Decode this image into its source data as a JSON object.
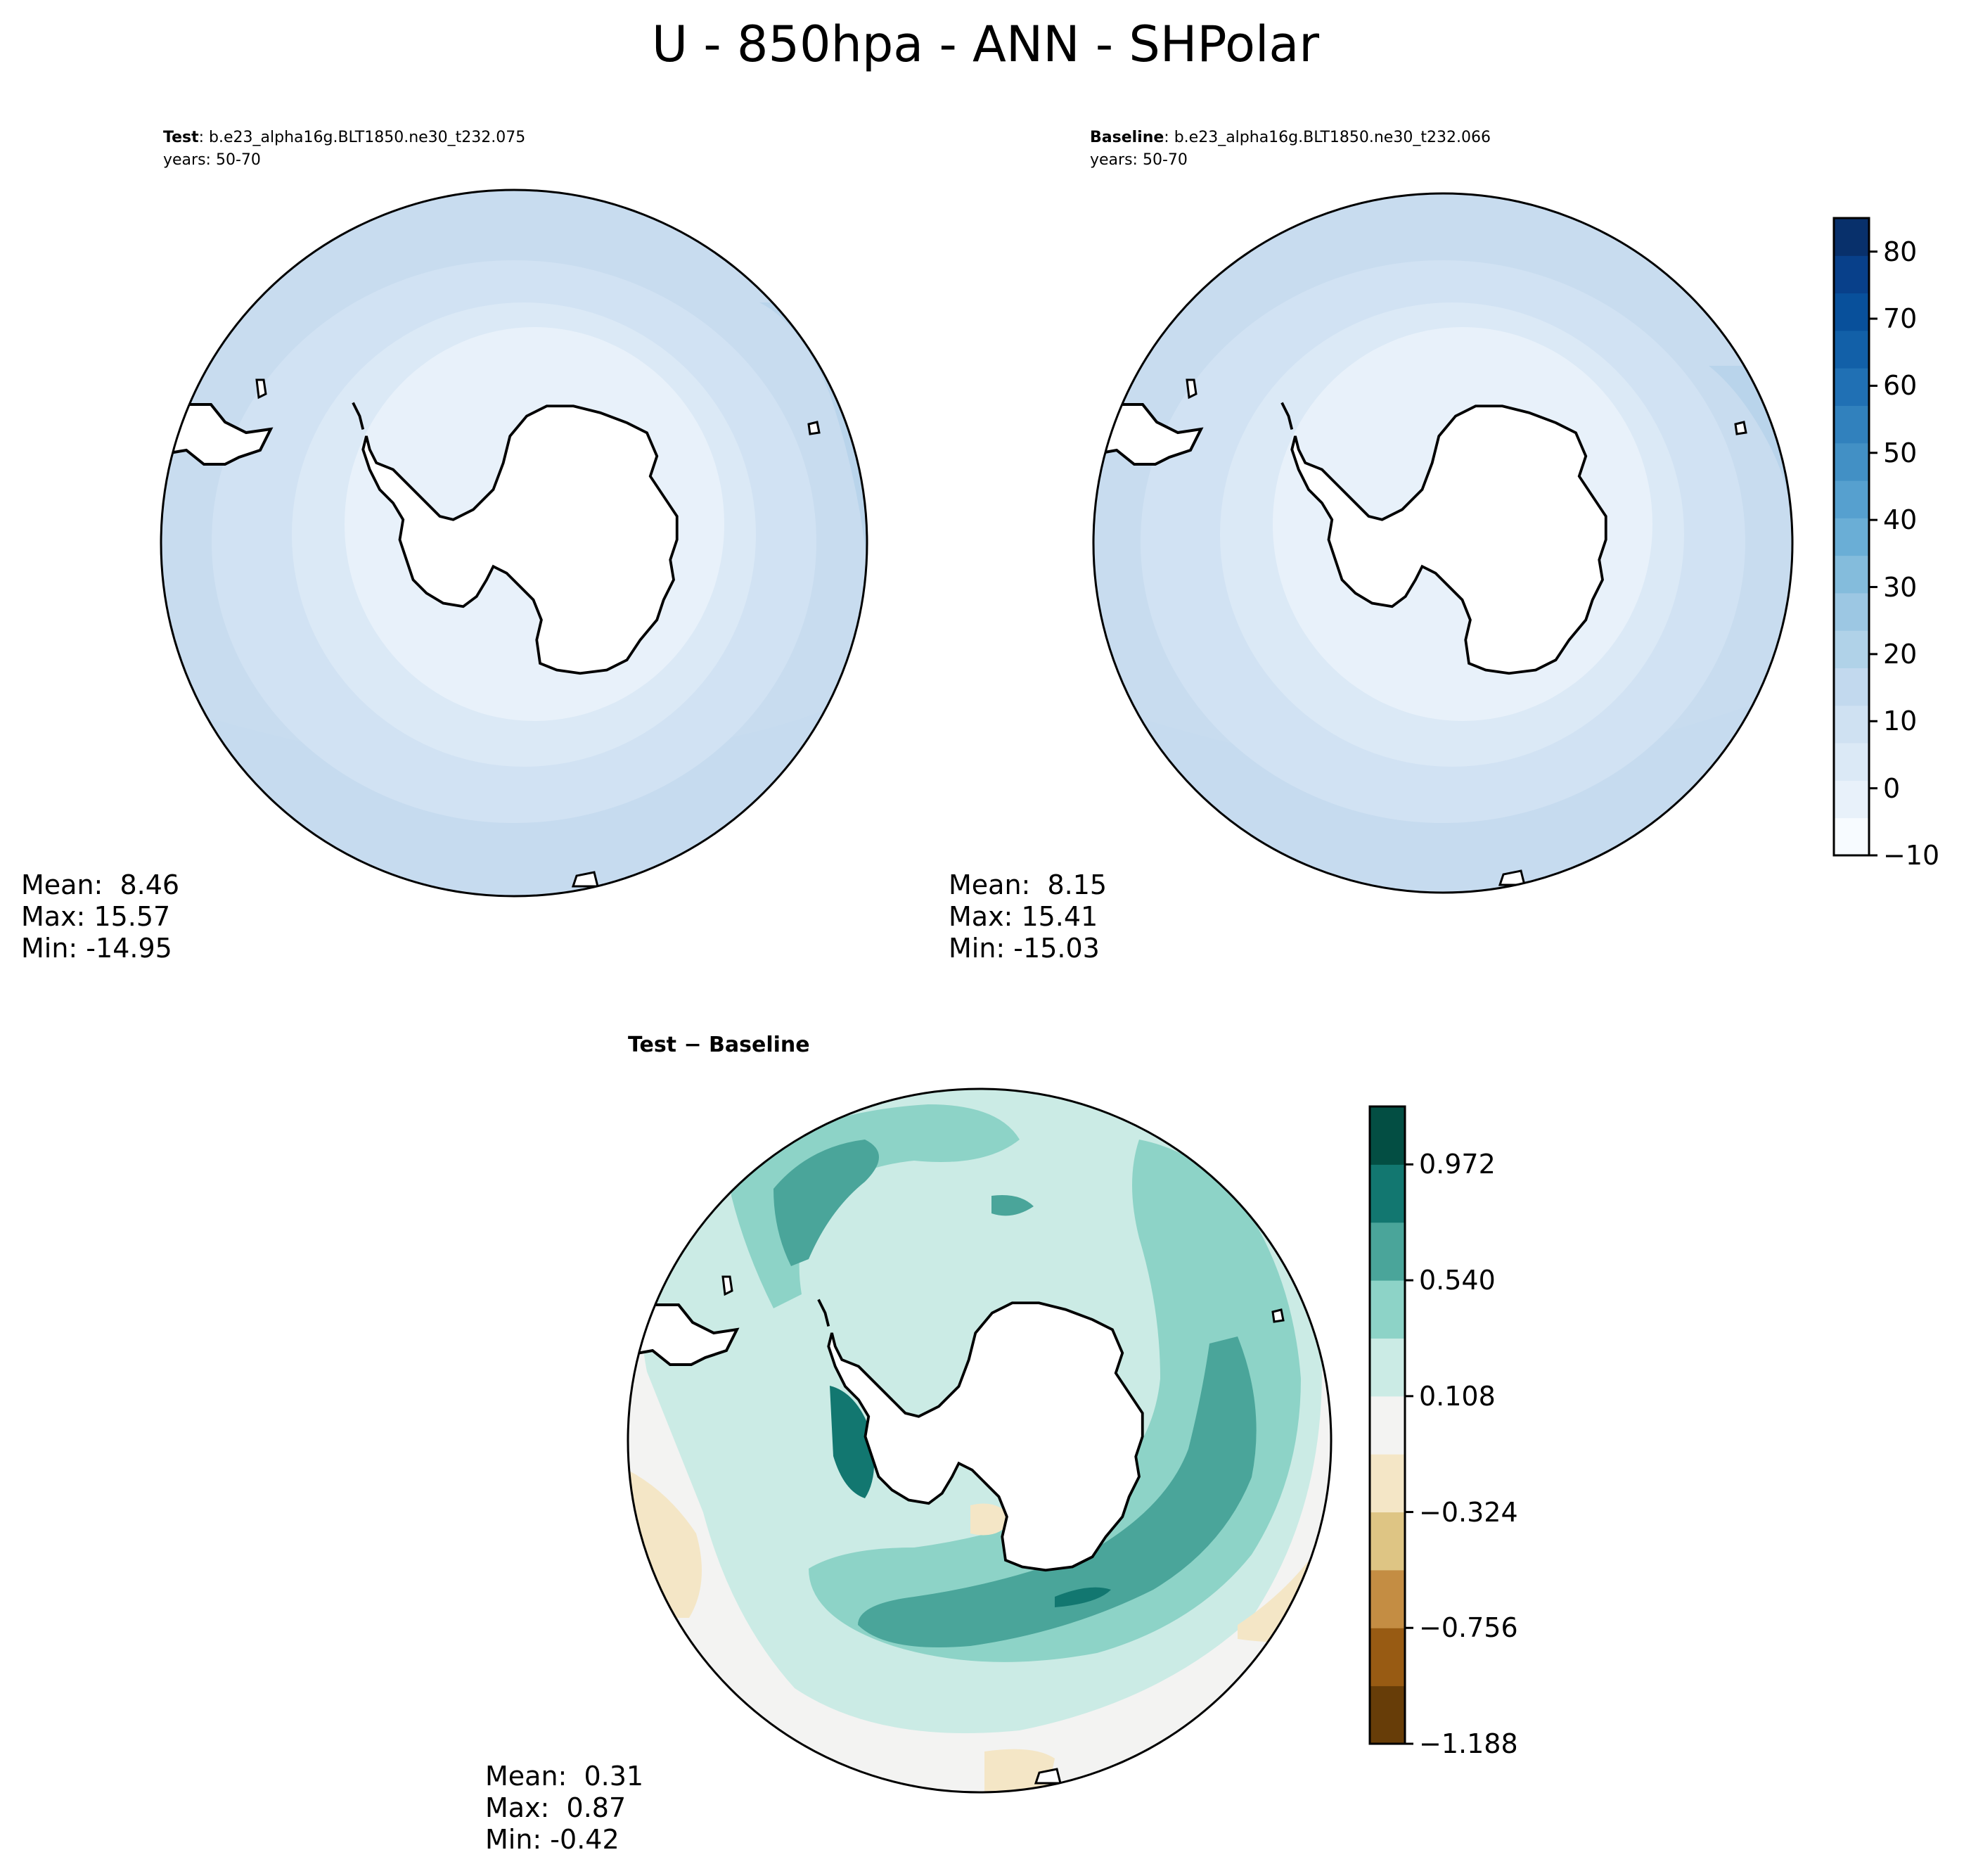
{
  "title": "U - 850hpa - ANN - SHPolar",
  "panels": {
    "test": {
      "label_bold": "Test",
      "label_rest": ": b.e23_alpha16g.BLT1850.ne30_t232.075",
      "years": "years: 50-70",
      "mean": "Mean:  8.46",
      "max": "Max: 15.57",
      "min": "Min: -14.95"
    },
    "baseline": {
      "label_bold": "Baseline",
      "label_rest": ": b.e23_alpha16g.BLT1850.ne30_t232.066",
      "years": "years: 50-70",
      "mean": "Mean:  8.15",
      "max": "Max: 15.41",
      "min": "Min: -15.03"
    },
    "diff": {
      "label": "Test − Baseline",
      "mean": "Mean:  0.31",
      "max": "Max:  0.87",
      "min": "Min: -0.42"
    }
  },
  "colorbars": {
    "main": {
      "ticks": [
        "80",
        "70",
        "60",
        "50",
        "40",
        "30",
        "20",
        "10",
        "0",
        "−10"
      ],
      "tick_values": [
        80,
        70,
        60,
        50,
        40,
        30,
        20,
        10,
        0,
        -10
      ],
      "range": [
        -10,
        85
      ],
      "colors": [
        "#f7fbff",
        "#e8f1fa",
        "#dbe9f6",
        "#cfe1f2",
        "#c2d9ee",
        "#b0d2e8",
        "#9cc7e3",
        "#84bcdc",
        "#6aaed6",
        "#56a0cf",
        "#4290c5",
        "#3181bd",
        "#2070b4",
        "#1260a8",
        "#08509b",
        "#08408a",
        "#08306b"
      ]
    },
    "diff": {
      "ticks": [
        "0.972",
        "0.540",
        "0.108",
        "−0.324",
        "−0.756",
        "−1.188"
      ],
      "tick_values": [
        0.972,
        0.54,
        0.108,
        -0.324,
        -0.756,
        -1.188
      ],
      "range": [
        -1.188,
        1.188
      ],
      "colors": [
        "#673d08",
        "#985b13",
        "#c48d43",
        "#dec584",
        "#f4e6c6",
        "#f3f3f2",
        "#cbebe5",
        "#8dd3c7",
        "#4aa59a",
        "#127770",
        "#034e43"
      ]
    }
  },
  "colors": {
    "land": "#ffffff",
    "coast": "#000000"
  }
}
